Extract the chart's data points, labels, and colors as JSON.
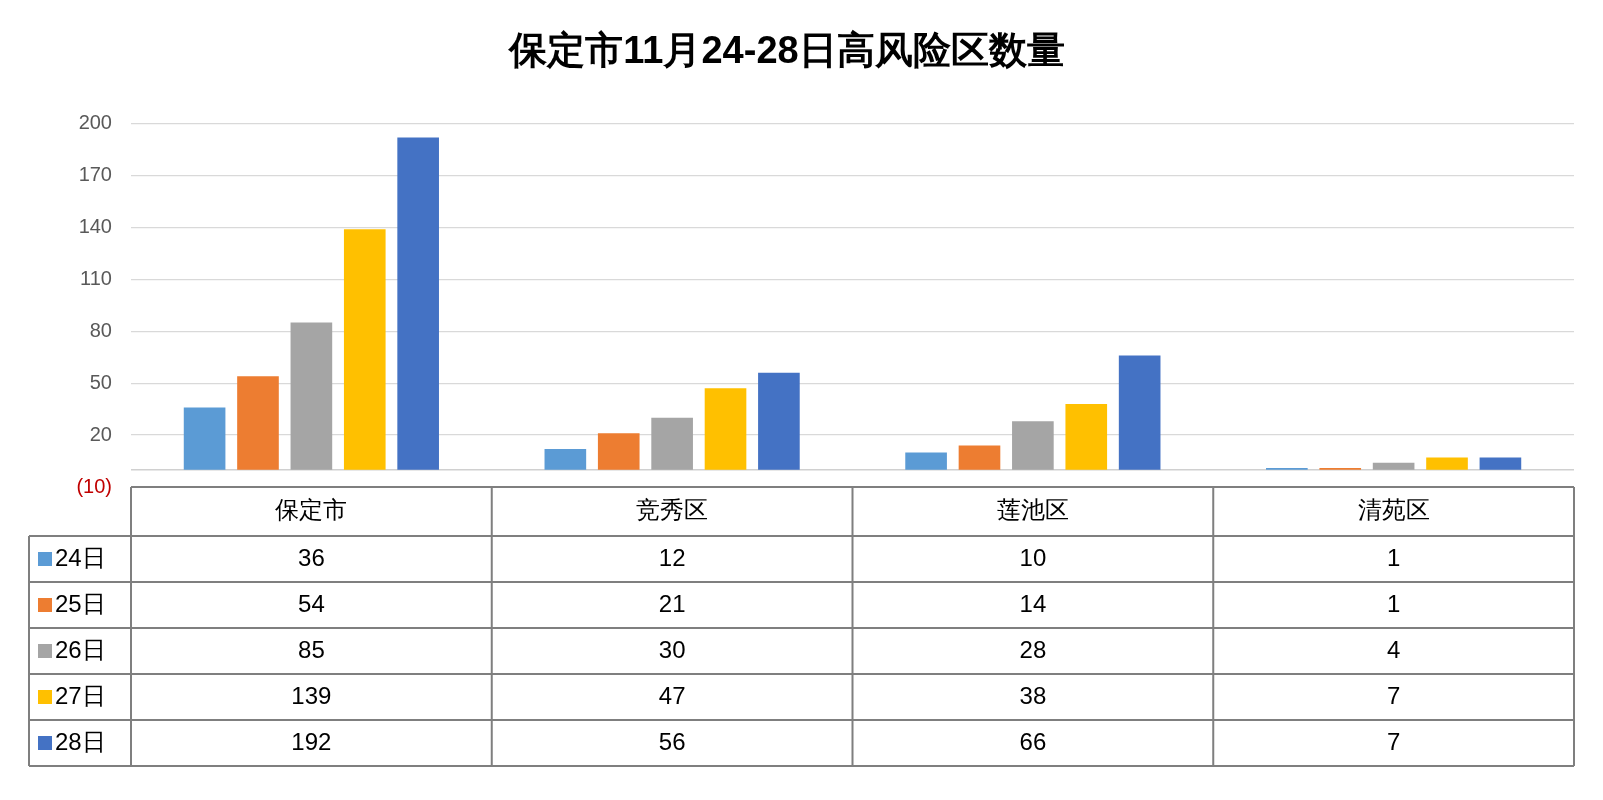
{
  "chart_data": {
    "type": "bar",
    "title": "保定市11月24-28日高风险区数量",
    "categories": [
      "保定市",
      "竞秀区",
      "莲池区",
      "清苑区"
    ],
    "series": [
      {
        "name": "24日",
        "color": "#5b9bd5",
        "values": [
          36,
          12,
          10,
          1
        ]
      },
      {
        "name": "25日",
        "color": "#ed7d31",
        "values": [
          54,
          21,
          14,
          1
        ]
      },
      {
        "name": "26日",
        "color": "#a5a5a5",
        "values": [
          85,
          30,
          28,
          4
        ]
      },
      {
        "name": "27日",
        "color": "#ffc000",
        "values": [
          139,
          47,
          38,
          7
        ]
      },
      {
        "name": "28日",
        "color": "#4472c4",
        "values": [
          192,
          56,
          66,
          7
        ]
      }
    ],
    "ylim": [
      -10,
      200
    ],
    "yticks": [
      {
        "value": -10,
        "label": "(10)"
      },
      20,
      50,
      80,
      110,
      140,
      170,
      200
    ],
    "grid": "y",
    "legend": "bottom",
    "data_labels": true
  }
}
